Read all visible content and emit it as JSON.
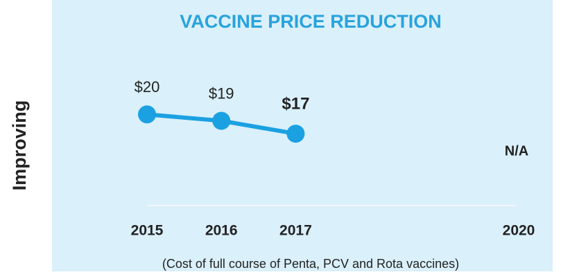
{
  "chart_data": {
    "type": "line",
    "title": "VACCINE PRICE REDUCTION",
    "y_label": "Improving",
    "note": "(Cost of full course of Penta, PCV and Rota vaccines)",
    "annotation": "N/A",
    "x": [
      2015,
      2016,
      2017,
      2020
    ],
    "xlim": [
      2015,
      2020
    ],
    "ylim": [
      14,
      24
    ],
    "series": [
      {
        "name": "Price",
        "color": "#1ba1e2",
        "values": [
          20,
          19,
          17,
          null
        ],
        "value_labels": [
          "$20",
          "$19",
          "$17",
          null
        ]
      }
    ]
  }
}
